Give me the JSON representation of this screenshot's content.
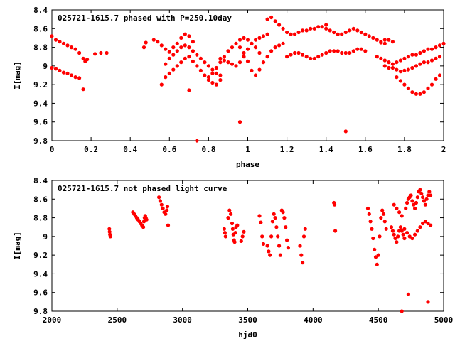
{
  "chart_data": [
    {
      "type": "scatter",
      "title": "025721-1615.7 phased with P=250.10day",
      "xlabel": "phase",
      "ylabel": "I[mag]",
      "xlim": [
        0,
        2
      ],
      "ylim": [
        9.8,
        8.4
      ],
      "y_inverted": true,
      "x_ticks": [
        0,
        0.2,
        0.4,
        0.6,
        0.8,
        1,
        1.2,
        1.4,
        1.6,
        1.8,
        2
      ],
      "x_tick_labels": [
        "0",
        "0.2",
        "0.4",
        "0.6",
        "0.8",
        "1",
        "1.2",
        "1.4",
        "1.6",
        "1.8",
        "2"
      ],
      "y_ticks": [
        8.4,
        8.6,
        8.8,
        9,
        9.2,
        9.4,
        9.6,
        9.8
      ],
      "y_tick_labels": [
        "8.4",
        "8.6",
        "8.8",
        "9",
        "9.2",
        "9.4",
        "9.6",
        "9.8"
      ],
      "grid": false,
      "legend": "none",
      "marker_color": "#ff0000",
      "series": [
        {
          "x": [
            0.0,
            0.02,
            0.04,
            0.06,
            0.08,
            0.1,
            0.12,
            0.14,
            0.16,
            0.17,
            0.18,
            0.22,
            0.25,
            0.28,
            0.0,
            0.02,
            0.04,
            0.06,
            0.08,
            0.1,
            0.12,
            0.14,
            0.16,
            0.47,
            0.48,
            0.52,
            0.54,
            0.56,
            0.58,
            0.6,
            0.62,
            0.64,
            0.66,
            0.68,
            0.7,
            0.72,
            0.56,
            0.58,
            0.6,
            0.62,
            0.64,
            0.66,
            0.68,
            0.7,
            0.72,
            0.74,
            0.76,
            0.78,
            0.8,
            0.82,
            0.84,
            0.86,
            0.58,
            0.6,
            0.62,
            0.64,
            0.66,
            0.68,
            0.7,
            0.72,
            0.74,
            0.76,
            0.78,
            0.8,
            0.82,
            0.84,
            0.86,
            0.8,
            0.82,
            0.84,
            0.86,
            0.88,
            0.9,
            0.92,
            0.94,
            0.96,
            0.98,
            1.0,
            1.02,
            1.04,
            1.06,
            0.86,
            0.88,
            0.9,
            0.92,
            0.94,
            0.96,
            0.98,
            1.0,
            1.02,
            1.04,
            1.06,
            1.08,
            1.1,
            0.96,
            0.98,
            1.0,
            1.02,
            1.04,
            1.06,
            1.08,
            1.1,
            1.12,
            1.14,
            1.16,
            1.18,
            1.1,
            1.12,
            1.14,
            1.16,
            1.18,
            1.2,
            1.22,
            1.24,
            1.26,
            1.28,
            1.3,
            1.32,
            1.34,
            1.36,
            1.38,
            1.4,
            1.2,
            1.22,
            1.24,
            1.26,
            1.28,
            1.3,
            1.32,
            1.34,
            1.36,
            1.38,
            1.4,
            1.42,
            1.44,
            1.46,
            1.48,
            1.5,
            1.52,
            1.54,
            1.56,
            1.58,
            1.6,
            1.4,
            1.42,
            1.44,
            1.46,
            1.48,
            1.5,
            1.52,
            1.54,
            1.56,
            1.58,
            1.6,
            1.62,
            1.64,
            1.66,
            1.68,
            1.7,
            1.66,
            1.68,
            1.7,
            1.72,
            1.74,
            1.76,
            1.78,
            1.8,
            1.82,
            1.84,
            1.86,
            1.88,
            1.9,
            1.92,
            1.94,
            1.96,
            1.98,
            2.0,
            1.7,
            1.72,
            1.74,
            1.76,
            1.78,
            1.8,
            1.82,
            1.84,
            1.86,
            1.88,
            1.9,
            1.92,
            1.94,
            1.96,
            1.98,
            1.76,
            1.78,
            1.8,
            1.82,
            1.84,
            1.86,
            1.88,
            1.9,
            1.92,
            1.94,
            1.96,
            1.98,
            1.68,
            1.7,
            1.72,
            1.74,
            0.74,
            0.96,
            1.5,
            0.7
          ],
          "y": [
            8.68,
            8.72,
            8.74,
            8.76,
            8.78,
            8.8,
            8.82,
            8.86,
            8.92,
            8.95,
            8.93,
            8.87,
            8.86,
            8.86,
            9.02,
            9.03,
            9.05,
            9.07,
            9.08,
            9.1,
            9.12,
            9.13,
            9.25,
            8.8,
            8.75,
            8.72,
            8.74,
            8.78,
            8.82,
            8.85,
            8.8,
            8.76,
            8.7,
            8.66,
            8.68,
            8.74,
            9.2,
            9.12,
            9.08,
            9.04,
            9.0,
            8.96,
            8.92,
            8.9,
            8.95,
            9.0,
            9.05,
            9.1,
            9.15,
            9.18,
            9.2,
            9.15,
            8.98,
            8.92,
            8.88,
            8.84,
            8.8,
            8.78,
            8.8,
            8.84,
            8.88,
            8.92,
            8.96,
            9.0,
            9.04,
            9.08,
            9.1,
            9.12,
            9.08,
            9.02,
            8.96,
            8.9,
            8.84,
            8.8,
            8.76,
            8.72,
            8.7,
            8.72,
            8.76,
            8.8,
            8.86,
            8.92,
            8.94,
            8.96,
            8.98,
            9.0,
            8.96,
            8.9,
            8.82,
            8.76,
            8.72,
            8.7,
            8.68,
            8.66,
            8.8,
            8.86,
            8.95,
            9.05,
            9.1,
            9.04,
            8.96,
            8.9,
            8.84,
            8.8,
            8.78,
            8.76,
            8.5,
            8.48,
            8.52,
            8.56,
            8.6,
            8.64,
            8.66,
            8.66,
            8.64,
            8.62,
            8.62,
            8.6,
            8.6,
            8.58,
            8.58,
            8.56,
            8.9,
            8.88,
            8.86,
            8.86,
            8.88,
            8.9,
            8.92,
            8.92,
            8.9,
            8.88,
            8.86,
            8.84,
            8.84,
            8.84,
            8.86,
            8.86,
            8.86,
            8.84,
            8.82,
            8.82,
            8.84,
            8.6,
            8.62,
            8.64,
            8.66,
            8.66,
            8.64,
            8.62,
            8.6,
            8.62,
            8.64,
            8.66,
            8.68,
            8.7,
            8.72,
            8.74,
            8.76,
            8.9,
            8.92,
            8.94,
            8.96,
            8.98,
            8.96,
            8.94,
            8.92,
            8.9,
            8.88,
            8.88,
            8.86,
            8.84,
            8.82,
            8.82,
            8.8,
            8.78,
            8.76,
            9.0,
            9.02,
            9.02,
            9.04,
            9.06,
            9.05,
            9.04,
            9.02,
            9.0,
            8.98,
            8.96,
            8.96,
            8.94,
            8.92,
            8.9,
            9.12,
            9.16,
            9.2,
            9.24,
            9.28,
            9.3,
            9.3,
            9.28,
            9.24,
            9.2,
            9.14,
            9.1,
            8.75,
            8.72,
            8.72,
            8.74,
            9.8,
            9.6,
            9.7,
            9.26
          ]
        }
      ]
    },
    {
      "type": "scatter",
      "title": "025721-1615.7 not phased light curve",
      "xlabel": "hjd0",
      "ylabel": "I[mag]",
      "xlim": [
        2000,
        5000
      ],
      "ylim": [
        9.8,
        8.4
      ],
      "y_inverted": true,
      "x_ticks": [
        2000,
        2500,
        3000,
        3500,
        4000,
        4500,
        5000
      ],
      "x_tick_labels": [
        "2000",
        "2500",
        "3000",
        "3500",
        "4000",
        "4500",
        "5000"
      ],
      "y_ticks": [
        8.4,
        8.6,
        8.8,
        9,
        9.2,
        9.4,
        9.6,
        9.8
      ],
      "y_tick_labels": [
        "8.4",
        "8.6",
        "8.8",
        "9",
        "9.2",
        "9.4",
        "9.6",
        "9.8"
      ],
      "grid": false,
      "legend": "none",
      "marker_color": "#ff0000",
      "series": [
        {
          "x": [
            2440,
            2442,
            2445,
            2448,
            2620,
            2630,
            2640,
            2650,
            2660,
            2670,
            2680,
            2690,
            2700,
            2705,
            2710,
            2715,
            2720,
            2725,
            2820,
            2830,
            2840,
            2850,
            2860,
            2870,
            2880,
            2885,
            2890,
            3320,
            3325,
            3330,
            3350,
            3360,
            3370,
            3380,
            3385,
            3390,
            3395,
            3400,
            3405,
            3410,
            3420,
            3450,
            3460,
            3470,
            3590,
            3600,
            3610,
            3620,
            3650,
            3660,
            3670,
            3680,
            3690,
            3700,
            3710,
            3720,
            3730,
            3740,
            3750,
            3760,
            3770,
            3780,
            3790,
            3800,
            3810,
            3900,
            3910,
            3920,
            3930,
            3940,
            4160,
            4165,
            4170,
            4420,
            4430,
            4440,
            4450,
            4460,
            4470,
            4480,
            4490,
            4500,
            4510,
            4520,
            4530,
            4540,
            4550,
            4560,
            4600,
            4610,
            4620,
            4630,
            4640,
            4650,
            4660,
            4670,
            4680,
            4690,
            4700,
            4710,
            4720,
            4730,
            4740,
            4750,
            4760,
            4770,
            4780,
            4790,
            4800,
            4810,
            4820,
            4830,
            4840,
            4850,
            4860,
            4870,
            4880,
            4890,
            4900,
            4620,
            4640,
            4660,
            4680,
            4700,
            4720,
            4740,
            4760,
            4780,
            4800,
            4820,
            4840,
            4860,
            4880,
            4900,
            4680,
            4730,
            4880
          ],
          "y": [
            8.92,
            8.95,
            8.98,
            9.0,
            8.74,
            8.76,
            8.78,
            8.8,
            8.82,
            8.84,
            8.86,
            8.88,
            8.9,
            8.84,
            8.8,
            8.78,
            8.8,
            8.82,
            8.58,
            8.62,
            8.66,
            8.7,
            8.74,
            8.76,
            8.72,
            8.68,
            8.88,
            8.92,
            8.96,
            9.0,
            8.8,
            8.72,
            8.76,
            8.86,
            8.92,
            8.98,
            9.04,
            9.06,
            8.96,
            8.9,
            8.88,
            9.05,
            9.0,
            8.95,
            8.78,
            8.85,
            9.0,
            9.08,
            9.1,
            9.16,
            9.2,
            9.0,
            8.84,
            8.76,
            8.8,
            8.9,
            9.0,
            9.1,
            9.2,
            8.72,
            8.74,
            8.8,
            8.9,
            9.04,
            9.12,
            9.1,
            9.2,
            9.28,
            9.0,
            8.92,
            8.64,
            8.66,
            8.94,
            8.7,
            8.76,
            8.84,
            8.92,
            9.02,
            9.14,
            9.22,
            9.3,
            9.2,
            9.0,
            8.8,
            8.72,
            8.76,
            8.84,
            8.92,
            8.9,
            8.94,
            8.98,
            9.02,
            9.06,
            9.0,
            8.94,
            8.9,
            8.94,
            8.98,
            9.02,
            8.7,
            8.64,
            8.6,
            8.58,
            8.56,
            8.62,
            8.66,
            8.7,
            8.64,
            8.58,
            8.52,
            8.5,
            8.54,
            8.58,
            8.62,
            8.66,
            8.6,
            8.56,
            8.52,
            8.56,
            8.66,
            8.7,
            8.74,
            8.78,
            8.92,
            8.96,
            9.0,
            9.02,
            8.98,
            8.94,
            8.9,
            8.86,
            8.84,
            8.86,
            8.88,
            9.8,
            9.62,
            9.7
          ]
        }
      ]
    }
  ]
}
